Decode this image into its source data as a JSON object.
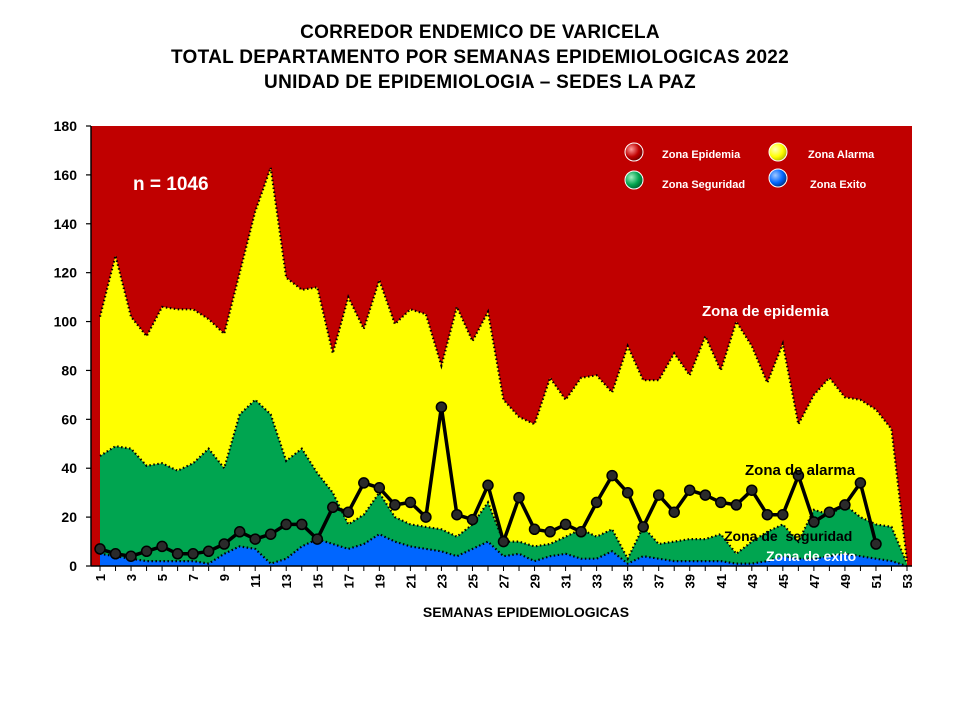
{
  "titles": [
    "CORREDOR ENDEMICO DE VARICELA",
    "TOTAL DEPARTAMENTO POR SEMANAS EPIDEMIOLOGICAS 2022",
    "UNIDAD DE EPIDEMIOLOGIA – SEDES LA PAZ"
  ],
  "chart_data": {
    "type": "area",
    "title": "CORREDOR ENDEMICO DE VARICELA",
    "xlabel": "SEMANAS EPIDEMIOLOGICAS",
    "ylabel": "",
    "ylim": [
      0,
      180
    ],
    "yticks": [
      0,
      20,
      40,
      60,
      80,
      100,
      120,
      140,
      160,
      180
    ],
    "x": [
      1,
      2,
      3,
      4,
      5,
      6,
      7,
      8,
      9,
      10,
      11,
      12,
      13,
      14,
      15,
      16,
      17,
      18,
      19,
      20,
      21,
      22,
      23,
      24,
      25,
      26,
      27,
      28,
      29,
      30,
      31,
      32,
      33,
      34,
      35,
      36,
      37,
      38,
      39,
      40,
      41,
      42,
      43,
      44,
      45,
      46,
      47,
      48,
      49,
      50,
      51,
      52,
      53
    ],
    "xticklabels": [
      "1",
      "3",
      "5",
      "7",
      "9",
      "11",
      "13",
      "15",
      "17",
      "19",
      "21",
      "23",
      "25",
      "27",
      "29",
      "31",
      "33",
      "35",
      "37",
      "39",
      "41",
      "43",
      "45",
      "47",
      "49",
      "51",
      "53"
    ],
    "annotation": "n = 1046",
    "zones": [
      {
        "name": "Zona de epidemia",
        "color": "#c00000",
        "upper": 180
      },
      {
        "name": "Zona de alarma",
        "color": "#ffff00",
        "upper": [
          102,
          127,
          102,
          94,
          106,
          105,
          105,
          101,
          95,
          120,
          145,
          163,
          118,
          113,
          114,
          87,
          110,
          97,
          117,
          99,
          105,
          103,
          82,
          106,
          92,
          104,
          68,
          61,
          58,
          77,
          68,
          77,
          78,
          71,
          90,
          76,
          76,
          87,
          78,
          94,
          80,
          100,
          90,
          75,
          91,
          58,
          70,
          77,
          69,
          68,
          64,
          56,
          2
        ]
      },
      {
        "name": "Zona de seguridad",
        "color": "#00a550",
        "upper": [
          45,
          49,
          48,
          41,
          42,
          39,
          42,
          48,
          40,
          62,
          68,
          62,
          43,
          48,
          38,
          30,
          17,
          21,
          30,
          20,
          17,
          16,
          15,
          12,
          17,
          26,
          10,
          10,
          8,
          9,
          12,
          15,
          12,
          15,
          3,
          16,
          9,
          10,
          11,
          11,
          13,
          5,
          10,
          14,
          17,
          10,
          23,
          21,
          25,
          20,
          17,
          16,
          1
        ]
      },
      {
        "name": "Zona de exito",
        "color": "#0066ff",
        "upper": [
          5,
          4,
          3,
          2,
          2,
          2,
          2,
          1,
          5,
          8,
          7,
          1,
          3,
          8,
          11,
          9,
          7,
          9,
          13,
          10,
          8,
          7,
          6,
          4,
          7,
          10,
          4,
          5,
          2,
          4,
          5,
          3,
          3,
          6,
          1,
          4,
          3,
          2,
          2,
          2,
          2,
          1,
          1,
          2,
          4,
          3,
          3,
          4,
          5,
          4,
          3,
          2,
          0
        ]
      }
    ],
    "series": [
      {
        "name": "",
        "values": [
          7,
          5,
          4,
          6,
          8,
          5,
          5,
          6,
          9,
          14,
          11,
          13,
          17,
          17,
          11,
          24,
          22,
          34,
          32,
          25,
          26,
          20,
          65,
          21,
          19,
          33,
          10,
          28,
          15,
          14,
          17,
          14,
          26,
          37,
          30,
          16,
          29,
          22,
          31,
          29,
          26,
          25,
          31,
          21,
          21,
          37,
          18,
          22,
          25,
          34,
          9,
          null,
          null
        ]
      }
    ],
    "legend": {
      "placement": "top-right",
      "entries": [
        {
          "label": "Zona Epidemia",
          "color": "#c00000"
        },
        {
          "label": "Zona Alarma",
          "color": "#ffff00"
        },
        {
          "label": "Zona Seguridad",
          "color": "#00a550"
        },
        {
          "label": "Zona Exito",
          "color": "#0066ff"
        }
      ]
    },
    "zone_labels": [
      "Zona de epidemia",
      "Zona de alarma",
      "Zona de  seguridad",
      "Zona de exito"
    ]
  }
}
